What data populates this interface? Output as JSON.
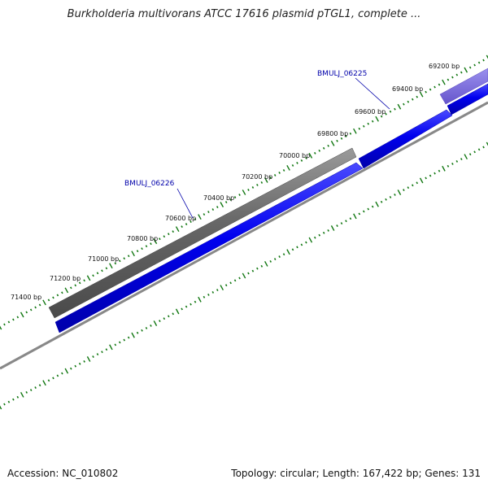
{
  "title": "Burkholderia multivorans ATCC 17616 plasmid pTGL1, complete ...",
  "footer": {
    "accession": "Accession: NC_010802",
    "summary": "Topology: circular; Length: 167,422 bp; Genes: 131"
  },
  "colors": {
    "tick": "#117711",
    "tick_label": "#111111",
    "cds": "#0000ee",
    "gene": "#666666",
    "gene_highlight": "#7766dd",
    "backbone": "#888888",
    "gene_label": "#0000aa"
  },
  "map": {
    "ticks": [
      "69200 bp",
      "69400 bp",
      "69600 bp",
      "69800 bp",
      "70000 bp",
      "70200 bp",
      "70400 bp",
      "70600 bp",
      "70800 bp",
      "71000 bp",
      "71200 bp",
      "71400 bp"
    ],
    "genes": [
      {
        "label": "BMULJ_06225"
      },
      {
        "label": "BMULJ_06226"
      }
    ]
  }
}
